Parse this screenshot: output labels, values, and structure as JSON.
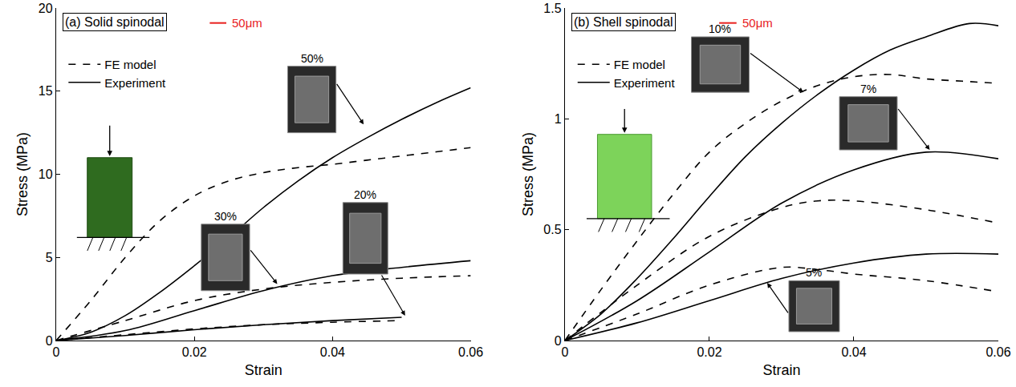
{
  "chart_data": [
    {
      "type": "line",
      "title": "(a) Solid spinodal",
      "x_label": "Strain",
      "y_label": "Stress (MPa)",
      "xlim": [
        0,
        0.06
      ],
      "xticks": [
        0,
        0.02,
        0.04,
        0.06
      ],
      "ylim": [
        0,
        20
      ],
      "yticks": [
        0,
        5,
        10,
        15,
        20
      ],
      "grid": false,
      "legend": "upper left",
      "annotations": [
        {
          "text": "50μm",
          "color": "#e8201e"
        }
      ],
      "series": [
        {
          "name": "FE model",
          "label": "50%",
          "color": "#000000",
          "line_style": "dashed",
          "x": [
            0,
            0.005,
            0.01,
            0.015,
            0.02,
            0.025,
            0.03,
            0.035,
            0.04,
            0.045,
            0.05,
            0.055,
            0.06
          ],
          "values": [
            0,
            2.4,
            5.0,
            7.2,
            8.7,
            9.6,
            10.1,
            10.4,
            10.6,
            10.85,
            11.1,
            11.35,
            11.6
          ]
        },
        {
          "name": "Experiment",
          "label": "50%",
          "color": "#000000",
          "line_style": "solid",
          "x": [
            0,
            0.005,
            0.01,
            0.015,
            0.02,
            0.025,
            0.03,
            0.035,
            0.04,
            0.045,
            0.05,
            0.055,
            0.06
          ],
          "values": [
            0,
            0.5,
            1.5,
            2.9,
            4.5,
            6.2,
            8.0,
            9.6,
            11.0,
            12.2,
            13.3,
            14.3,
            15.2
          ]
        },
        {
          "name": "FE model",
          "label": "30%",
          "color": "#000000",
          "line_style": "dashed",
          "x": [
            0,
            0.01,
            0.02,
            0.03,
            0.04,
            0.05,
            0.06
          ],
          "values": [
            0,
            1.2,
            2.4,
            3.1,
            3.5,
            3.75,
            3.9
          ]
        },
        {
          "name": "Experiment",
          "label": "30%",
          "color": "#000000",
          "line_style": "solid",
          "x": [
            0,
            0.01,
            0.02,
            0.03,
            0.04,
            0.05,
            0.06
          ],
          "values": [
            0,
            0.6,
            1.8,
            3.0,
            3.9,
            4.4,
            4.8
          ]
        },
        {
          "name": "FE model",
          "label": "20%",
          "color": "#000000",
          "line_style": "dashed",
          "x": [
            0,
            0.01,
            0.02,
            0.03,
            0.04,
            0.05
          ],
          "values": [
            0,
            0.35,
            0.7,
            0.95,
            1.1,
            1.2
          ]
        },
        {
          "name": "Experiment",
          "label": "20%",
          "color": "#000000",
          "line_style": "solid",
          "x": [
            0,
            0.01,
            0.02,
            0.03,
            0.04,
            0.05
          ],
          "values": [
            0,
            0.3,
            0.65,
            0.95,
            1.2,
            1.4
          ]
        }
      ]
    },
    {
      "type": "line",
      "title": "(b) Shell spinodal",
      "x_label": "Strain",
      "y_label": "Stress (MPa)",
      "xlim": [
        0,
        0.06
      ],
      "xticks": [
        0,
        0.02,
        0.04,
        0.06
      ],
      "ylim": [
        0,
        1.5
      ],
      "yticks": [
        0,
        0.5,
        1,
        1.5
      ],
      "grid": false,
      "legend": "upper left",
      "annotations": [
        {
          "text": "50μm",
          "color": "#e8201e"
        }
      ],
      "series": [
        {
          "name": "FE model",
          "label": "10%",
          "color": "#000000",
          "line_style": "dashed",
          "x": [
            0,
            0.005,
            0.01,
            0.015,
            0.02,
            0.025,
            0.03,
            0.035,
            0.04,
            0.045,
            0.05,
            0.055,
            0.06
          ],
          "values": [
            0,
            0.23,
            0.45,
            0.66,
            0.85,
            0.98,
            1.08,
            1.15,
            1.19,
            1.2,
            1.18,
            1.17,
            1.16
          ]
        },
        {
          "name": "Experiment",
          "label": "10%",
          "color": "#000000",
          "line_style": "solid",
          "x": [
            0,
            0.005,
            0.01,
            0.015,
            0.02,
            0.025,
            0.03,
            0.035,
            0.04,
            0.045,
            0.05,
            0.056,
            0.06
          ],
          "values": [
            0,
            0.12,
            0.28,
            0.46,
            0.65,
            0.83,
            0.98,
            1.11,
            1.22,
            1.31,
            1.37,
            1.43,
            1.42
          ]
        },
        {
          "name": "FE model",
          "label": "7%",
          "color": "#000000",
          "line_style": "dashed",
          "x": [
            0,
            0.01,
            0.02,
            0.03,
            0.035,
            0.04,
            0.05,
            0.06
          ],
          "values": [
            0,
            0.25,
            0.47,
            0.6,
            0.63,
            0.63,
            0.59,
            0.53
          ]
        },
        {
          "name": "Experiment",
          "label": "7%",
          "color": "#000000",
          "line_style": "solid",
          "x": [
            0,
            0.01,
            0.02,
            0.03,
            0.04,
            0.05,
            0.06
          ],
          "values": [
            0,
            0.18,
            0.4,
            0.62,
            0.77,
            0.85,
            0.82
          ]
        },
        {
          "name": "FE model",
          "label": "5%",
          "color": "#000000",
          "line_style": "dashed",
          "x": [
            0,
            0.01,
            0.02,
            0.03,
            0.035,
            0.04,
            0.05,
            0.06
          ],
          "values": [
            0,
            0.12,
            0.25,
            0.33,
            0.32,
            0.3,
            0.27,
            0.22
          ]
        },
        {
          "name": "Experiment",
          "label": "5%",
          "color": "#000000",
          "line_style": "solid",
          "x": [
            0,
            0.01,
            0.02,
            0.03,
            0.04,
            0.05,
            0.06
          ],
          "values": [
            0,
            0.08,
            0.18,
            0.28,
            0.35,
            0.39,
            0.39
          ]
        }
      ]
    }
  ]
}
